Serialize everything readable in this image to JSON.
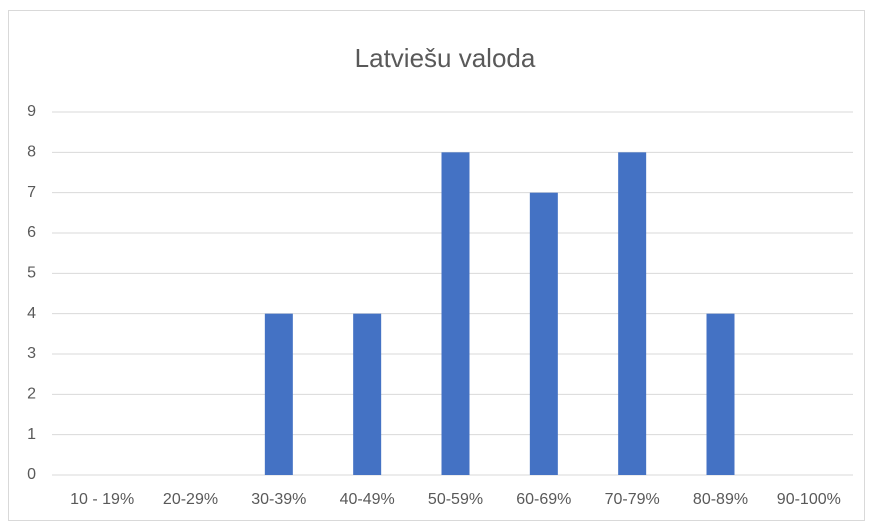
{
  "chart_data": {
    "type": "bar",
    "title": "Latviešu valoda",
    "categories": [
      "10 - 19%",
      "20-29%",
      "30-39%",
      "40-49%",
      "50-59%",
      "60-69%",
      "70-79%",
      "80-89%",
      "90-100%"
    ],
    "values": [
      0,
      0,
      4,
      4,
      8,
      7,
      8,
      4,
      0
    ],
    "color": "#4472c4",
    "ylim": [
      0,
      9
    ],
    "yticks": [
      0,
      1,
      2,
      3,
      4,
      5,
      6,
      7,
      8,
      9
    ],
    "grid": true
  }
}
